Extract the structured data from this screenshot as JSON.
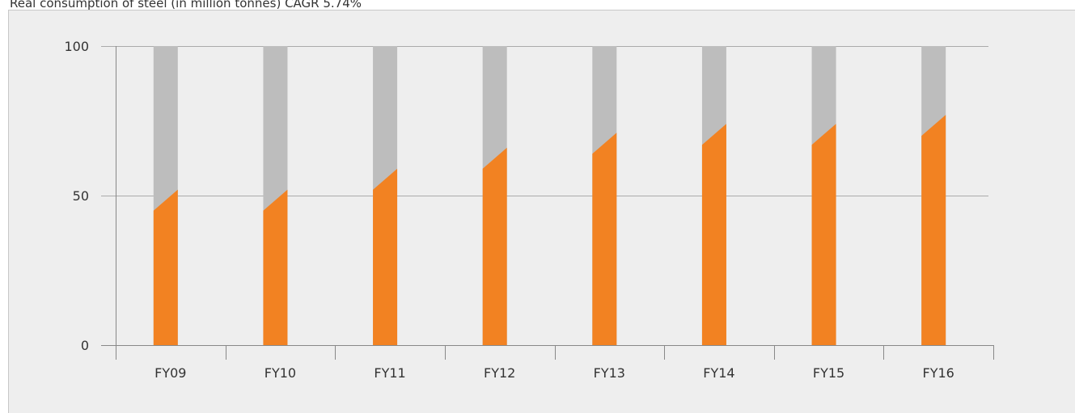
{
  "chart_data": {
    "type": "bar",
    "title": "Real consumption of steel (in million tonnes) CAGR 5.74%",
    "categories": [
      "FY09",
      "FY10",
      "FY11",
      "FY12",
      "FY13",
      "FY14",
      "FY15",
      "FY16"
    ],
    "values": [
      52,
      52,
      59,
      66,
      71,
      74,
      74,
      77
    ],
    "color": "#f28222",
    "background_bar_color": "#bdbdbd",
    "ylim": [
      0,
      100
    ],
    "yticks": [
      0,
      50,
      100
    ],
    "grid": true
  }
}
